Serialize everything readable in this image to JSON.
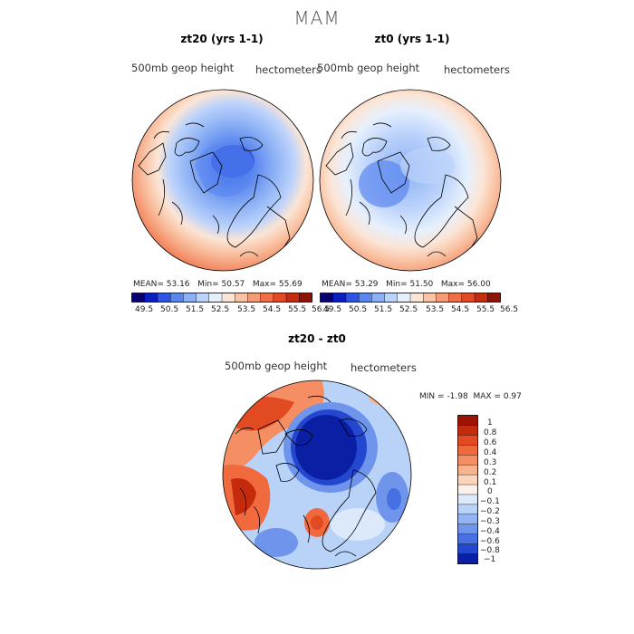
{
  "figure": {
    "title": "MAM",
    "panels": [
      {
        "title": "zt20 (yrs 1-1)",
        "variable": "500mb geop height",
        "units": "hectometers",
        "stats": {
          "mean_label": "MEAN=",
          "mean": "53.16",
          "min_label": "Min=",
          "min": "50.57",
          "max_label": "Max=",
          "max": "55.69"
        }
      },
      {
        "title": "zt0 (yrs 1-1)",
        "variable": "500mb geop height",
        "units": "hectometers",
        "stats": {
          "mean_label": "MEAN=",
          "mean": "53.29",
          "min_label": "Min=",
          "min": "51.50",
          "max_label": "Max=",
          "max": "56.00"
        }
      },
      {
        "title": "zt20 - zt0",
        "variable": "500mb geop height",
        "units": "hectometers",
        "stats": {
          "min_label": "MIN =",
          "min": "-1.98",
          "max_label": "MAX =",
          "max": "0.97"
        }
      }
    ],
    "shared_colorbar": {
      "ticks": [
        "49.5",
        "50.5",
        "51.5",
        "52.5",
        "53.5",
        "54.5",
        "55.5",
        "56.5"
      ],
      "colors": [
        "#08006e",
        "#0a1fbd",
        "#2f55e0",
        "#5a86f0",
        "#8bb0f5",
        "#bcd3fb",
        "#e6f0fd",
        "#fbe5d6",
        "#f9c4a5",
        "#f59c77",
        "#ee7048",
        "#e24a24",
        "#c32d10",
        "#8c1305"
      ]
    },
    "diff_colorbar": {
      "labels": [
        "1",
        "0.8",
        "0.6",
        "0.4",
        "0.3",
        "0.2",
        "0.1",
        "0",
        "−0.1",
        "−0.2",
        "−0.3",
        "−0.4",
        "−0.6",
        "−0.8",
        "−1"
      ],
      "colors": [
        "#9e1404",
        "#c42a0c",
        "#e24a22",
        "#f06a3e",
        "#f68e64",
        "#f9b48e",
        "#fbd5bd",
        "#fbf1e8",
        "#dce9fb",
        "#b9d2f8",
        "#93b5f3",
        "#6f94ec",
        "#4770e2",
        "#2447d0",
        "#0a1fa4"
      ]
    }
  },
  "chart_data": [
    {
      "type": "heatmap",
      "title": "zt20 (yrs 1-1)",
      "subtitle": "500mb geop height",
      "units": "hectometers",
      "projection": "north polar stereographic",
      "mean": 53.16,
      "min": 50.57,
      "max": 55.69,
      "colorbar_range": [
        49.5,
        56.5
      ]
    },
    {
      "type": "heatmap",
      "title": "zt0 (yrs 1-1)",
      "subtitle": "500mb geop height",
      "units": "hectometers",
      "projection": "north polar stereographic",
      "mean": 53.29,
      "min": 51.5,
      "max": 56.0,
      "colorbar_range": [
        49.5,
        56.5
      ]
    },
    {
      "type": "heatmap",
      "title": "zt20 - zt0",
      "subtitle": "500mb geop height",
      "units": "hectometers",
      "projection": "north polar stereographic",
      "min": -1.98,
      "max": 0.97,
      "colorbar_levels": [
        1,
        0.8,
        0.6,
        0.4,
        0.3,
        0.2,
        0.1,
        0,
        -0.1,
        -0.2,
        -0.3,
        -0.4,
        -0.6,
        -0.8,
        -1
      ]
    }
  ]
}
